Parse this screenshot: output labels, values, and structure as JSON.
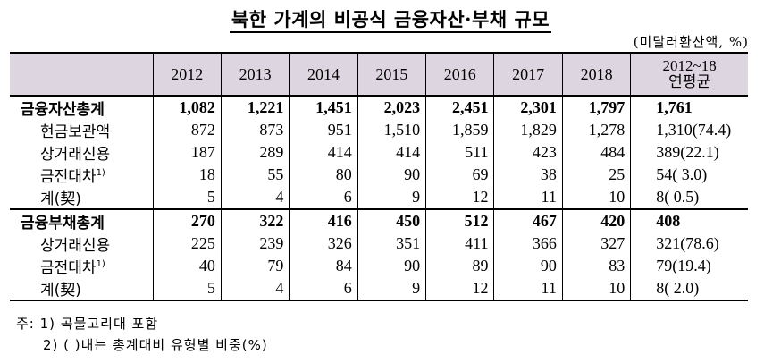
{
  "title": "북한 가계의 비공식 금융자산·부채 규모",
  "unit": "(미달러환산액, %)",
  "table": {
    "headers": [
      "2012",
      "2013",
      "2014",
      "2015",
      "2016",
      "2017",
      "2018",
      "2012~18",
      "연평균"
    ],
    "rows": [
      {
        "label": "금융자산총계",
        "sup": "",
        "cells": [
          "1,082",
          "1,221",
          "1,451",
          "2,023",
          "2,451",
          "2,301",
          "1,797",
          "1,761"
        ]
      },
      {
        "label": "현금보관액",
        "sup": "",
        "cells": [
          "872",
          "873",
          "951",
          "1,510",
          "1,859",
          "1,829",
          "1,278",
          "1,310(74.4)"
        ]
      },
      {
        "label": "상거래신용",
        "sup": "",
        "cells": [
          "187",
          "289",
          "414",
          "414",
          "511",
          "423",
          "484",
          "389(22.1)"
        ]
      },
      {
        "label": "금전대차",
        "sup": "1)",
        "cells": [
          "18",
          "55",
          "80",
          "90",
          "69",
          "38",
          "25",
          "54( 3.0)"
        ]
      },
      {
        "label": "계(契)",
        "sup": "",
        "cells": [
          "5",
          "4",
          "6",
          "9",
          "12",
          "11",
          "10",
          "8( 0.5)"
        ]
      },
      {
        "label": "금융부채총계",
        "sup": "",
        "cells": [
          "270",
          "322",
          "416",
          "450",
          "512",
          "467",
          "420",
          "408"
        ]
      },
      {
        "label": "상거래신용",
        "sup": "",
        "cells": [
          "225",
          "239",
          "326",
          "351",
          "411",
          "366",
          "327",
          "321(78.6)"
        ]
      },
      {
        "label": "금전대차",
        "sup": "1)",
        "cells": [
          "40",
          "79",
          "84",
          "90",
          "89",
          "90",
          "83",
          "79(19.4)"
        ]
      },
      {
        "label": "계(契)",
        "sup": "",
        "cells": [
          "5",
          "4",
          "6",
          "9",
          "12",
          "11",
          "10",
          "8( 2.0)"
        ]
      }
    ]
  },
  "notes": {
    "note1": "주: 1) 곡물고리대 포함",
    "note2": "2) ( )내는 총계대비 유형별 비중(%)"
  }
}
